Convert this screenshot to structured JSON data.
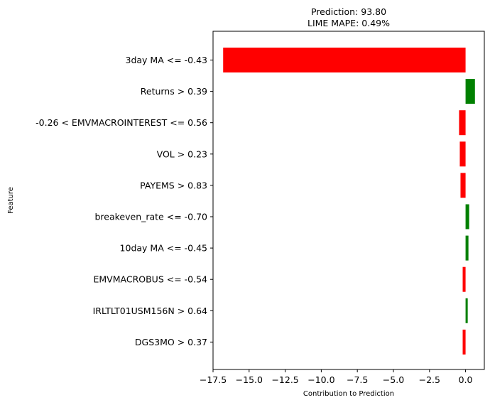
{
  "chart_data": {
    "type": "bar",
    "orientation": "horizontal",
    "title": "Prediction: 93.80",
    "subtitle": "LIME MAPE: 0.49%",
    "xlabel": "Contribution to Prediction",
    "ylabel": "Feature",
    "xlim": [
      -17.5,
      1.3
    ],
    "xticks": [
      -17.5,
      -15.0,
      -12.5,
      -10.0,
      -7.5,
      -5.0,
      -2.5,
      0.0
    ],
    "xtick_labels": [
      "−17.5",
      "−15.0",
      "−12.5",
      "−10.0",
      "−7.5",
      "−5.0",
      "−2.5",
      "0.0"
    ],
    "grid": false,
    "positive_color": "#008000",
    "negative_color": "#ff0000",
    "categories": [
      "3day MA <= -0.43",
      "Returns > 0.39",
      "-0.26 < EMVMACROINTEREST <= 0.56",
      "VOL > 0.23",
      "PAYEMS > 0.83",
      "breakeven_rate <= -0.70",
      "10day MA <= -0.45",
      "EMVMACROBUS <= -0.54",
      "IRLTLT01USM156N > 0.64",
      "DGS3MO > 0.37"
    ],
    "values": [
      -16.8,
      0.65,
      -0.45,
      -0.4,
      -0.35,
      0.25,
      0.2,
      -0.2,
      0.15,
      -0.2
    ]
  }
}
